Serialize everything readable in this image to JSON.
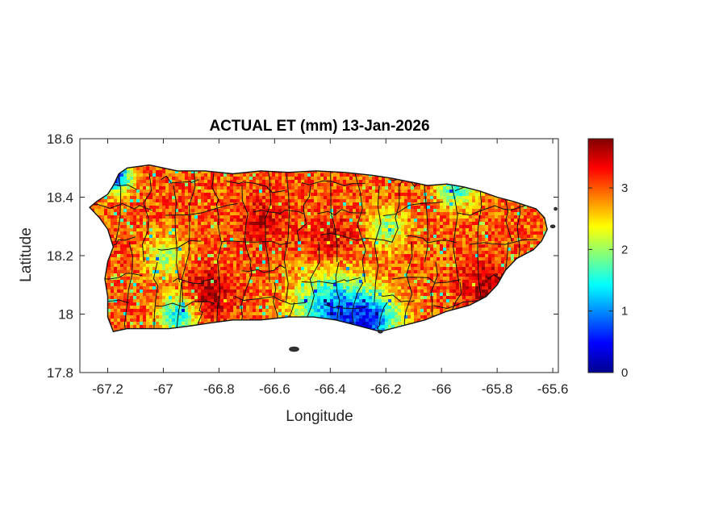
{
  "chart_data": {
    "type": "heatmap",
    "title": "ACTUAL ET (mm) 13-Jan-2026",
    "xlabel": "Longitude",
    "ylabel": "Latitude",
    "xlim": [
      -67.3,
      -65.58
    ],
    "ylim": [
      17.8,
      18.6
    ],
    "x_ticks": [
      -67.2,
      -67,
      -66.8,
      -66.6,
      -66.4,
      -66.2,
      -66,
      -65.8,
      -65.6
    ],
    "x_tick_labels": [
      "-67.2",
      "-67",
      "-66.8",
      "-66.6",
      "-66.4",
      "-66.2",
      "-66",
      "-65.8",
      "-65.6"
    ],
    "y_ticks": [
      17.8,
      18,
      18.2,
      18.4,
      18.6
    ],
    "y_tick_labels": [
      "17.8",
      "18",
      "18.2",
      "18.4",
      "18.6"
    ],
    "colormap": "jet",
    "colorbar": {
      "min": 0,
      "max": 3.8,
      "ticks": [
        0,
        1,
        2,
        3
      ],
      "tick_labels": [
        "0",
        "1",
        "2",
        "3"
      ]
    },
    "grid": false,
    "approx_field": {
      "typical_value": 3.0,
      "low_zones": [
        {
          "lon": -66.4,
          "lat": 18.02,
          "value": 1.0,
          "spread": 0.09
        },
        {
          "lon": -66.25,
          "lat": 17.98,
          "value": 1.1,
          "spread": 0.07
        },
        {
          "lon": -66.95,
          "lat": 18.0,
          "value": 1.4,
          "spread": 0.05
        },
        {
          "lon": -67.18,
          "lat": 18.48,
          "value": 0.5,
          "spread": 0.04
        },
        {
          "lon": -65.95,
          "lat": 18.44,
          "value": 1.6,
          "spread": 0.05
        },
        {
          "lon": -66.2,
          "lat": 18.3,
          "value": 2.0,
          "spread": 0.05
        },
        {
          "lon": -67.0,
          "lat": 18.2,
          "value": 2.0,
          "spread": 0.05
        }
      ],
      "high_zones": [
        {
          "lon": -66.85,
          "lat": 18.07,
          "value": 3.7,
          "spread": 0.06
        },
        {
          "lon": -65.85,
          "lat": 18.1,
          "value": 3.6,
          "spread": 0.06
        },
        {
          "lon": -66.4,
          "lat": 18.25,
          "value": 3.5,
          "spread": 0.06
        },
        {
          "lon": -66.65,
          "lat": 18.32,
          "value": 3.4,
          "spread": 0.06
        }
      ]
    }
  }
}
